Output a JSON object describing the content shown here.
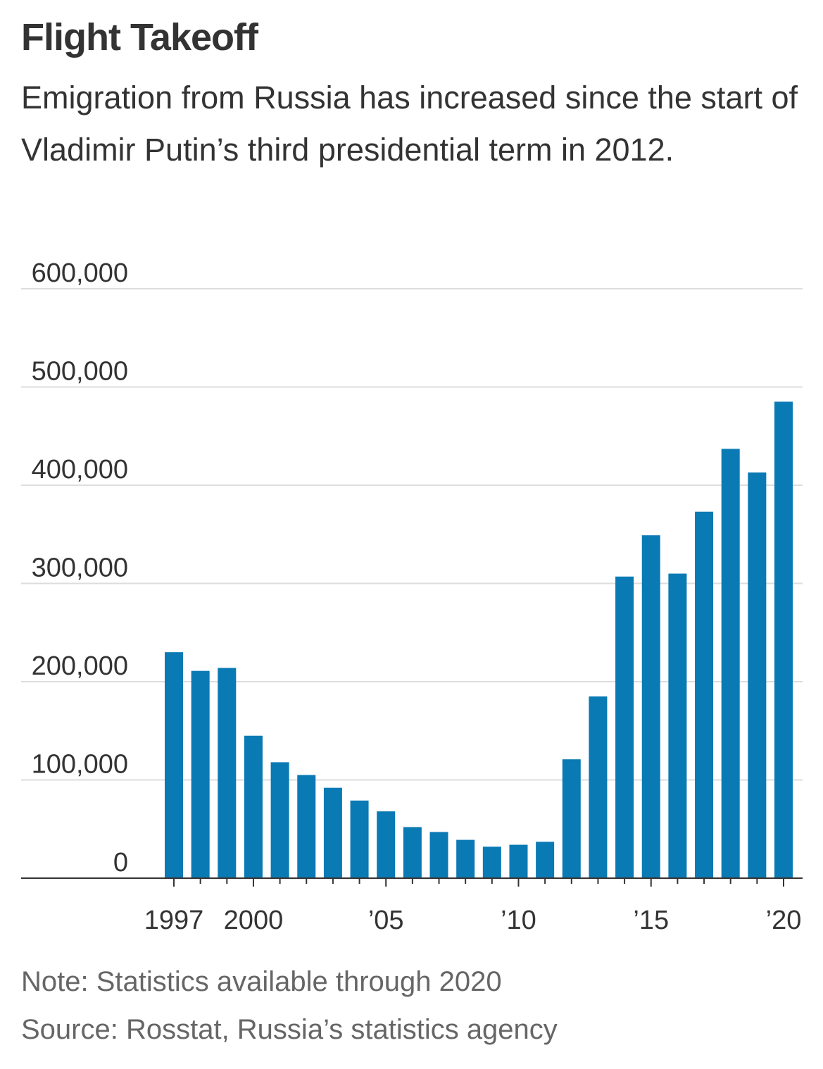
{
  "chart_data": {
    "type": "bar",
    "title": "Flight Takeoff",
    "subtitle": "Emigration from Russia has increased since the start of Vladimir Putin’s third presidential term in 2012.",
    "categories": [
      "1997",
      null,
      null,
      "2000",
      null,
      null,
      null,
      null,
      "’05",
      null,
      null,
      null,
      null,
      "’10",
      null,
      null,
      null,
      null,
      "’15",
      null,
      null,
      null,
      null,
      "’20"
    ],
    "values": [
      230000,
      211000,
      214000,
      145000,
      118000,
      105000,
      92000,
      79000,
      68000,
      52000,
      47000,
      39000,
      32000,
      34000,
      37000,
      121000,
      185000,
      307000,
      349000,
      310000,
      373000,
      437000,
      413000,
      485000
    ],
    "color": "#0a7ab4",
    "ylim": [
      0,
      600000
    ],
    "yticks": [
      0,
      {
        "value": 100000,
        "label": "100,000"
      },
      {
        "value": 200000,
        "label": "200,000"
      },
      {
        "value": 300000,
        "label": "300,000"
      },
      {
        "value": 400000,
        "label": "400,000"
      },
      {
        "value": 500000,
        "label": "500,000"
      },
      {
        "value": 600000,
        "label": "600,000"
      }
    ],
    "grid": true,
    "note": "Note: Statistics available through 2020",
    "source": "Source: Rosstat, Russia’s statistics agency"
  }
}
